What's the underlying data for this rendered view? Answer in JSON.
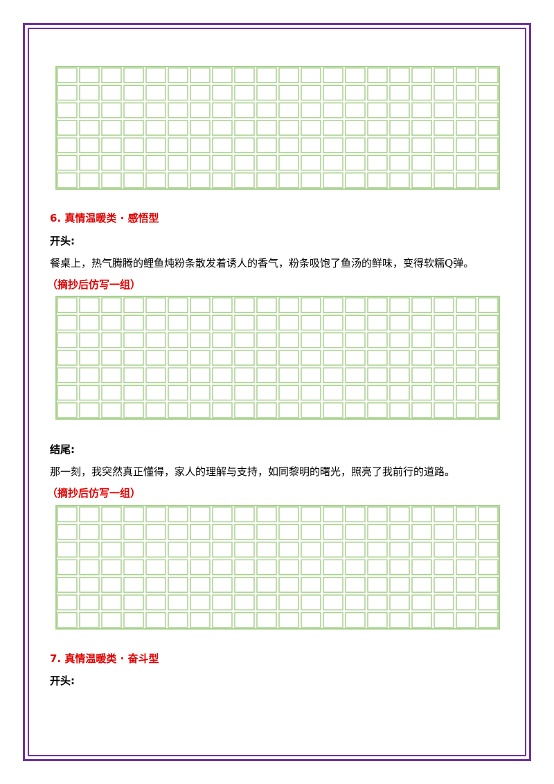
{
  "sections": [
    {
      "heading": "6.  真情温暖类 · 感悟型",
      "opening_label": "开头:",
      "opening_text": "餐桌上，热气腾腾的鲤鱼炖粉条散发着诱人的香气，粉条吸饱了鱼汤的鲜味，变得软糯Q弹。",
      "opening_prompt": "（摘抄后仿写一组）",
      "ending_label": "结尾:",
      "ending_text": "那一刻，我突然真正懂得，家人的理解与支持，如同黎明的曙光，照亮了我前行的道路。",
      "ending_prompt": "（摘抄后仿写一组）"
    },
    {
      "heading": "7.  真情温暖类 · 奋斗型",
      "opening_label": "开头:"
    }
  ]
}
